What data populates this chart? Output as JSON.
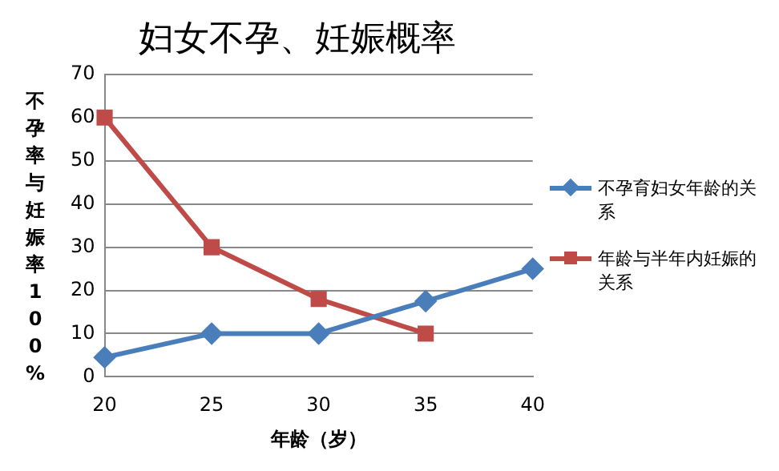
{
  "chart_data": {
    "type": "line",
    "title": "妇女不孕、妊娠概率",
    "xlabel": "年龄（岁）",
    "ylabel": "不孕率与妊娠率100%",
    "categories": [
      "20",
      "25",
      "30",
      "35",
      "40"
    ],
    "series": [
      {
        "name": "不孕育妇女年龄的关系",
        "color": "#4a7ebb",
        "marker": "diamond",
        "values": [
          4.5,
          10,
          10,
          17.5,
          25
        ]
      },
      {
        "name": "年龄与半年内妊娠的关系",
        "color": "#be4b48",
        "marker": "square",
        "values": [
          60,
          30,
          18,
          10,
          null
        ]
      }
    ],
    "ylim": [
      0,
      70
    ],
    "yticks": [
      0,
      10,
      20,
      30,
      40,
      50,
      60,
      70
    ],
    "grid": "y",
    "legend": "right"
  }
}
